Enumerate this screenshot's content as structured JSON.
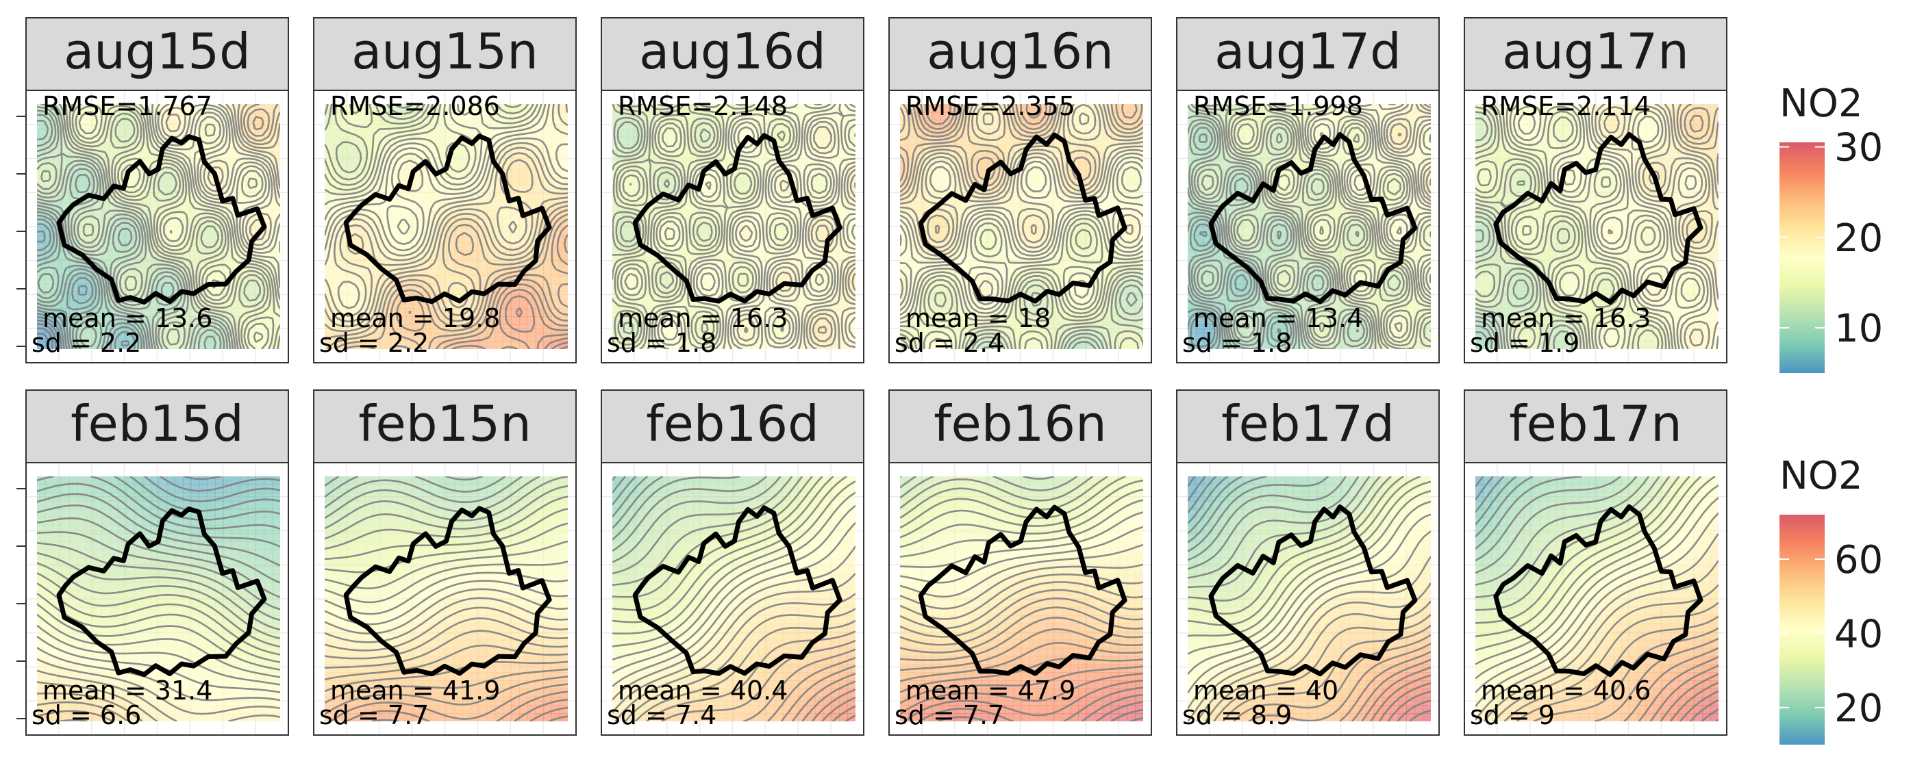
{
  "chart_data": {
    "type": "heatmap",
    "description_free": true,
    "rows": [
      {
        "legend": {
          "title": "NO2",
          "ticks": [
            10,
            20,
            30
          ],
          "range": [
            5,
            30.5
          ]
        },
        "panels": [
          {
            "label": "aug15d",
            "rmse": "RMSE=1.767",
            "mean": "mean = 13.6",
            "sd": "sd = 2.2",
            "field": {
              "base": 13.6,
              "gx": 0.09,
              "gy": -0.07,
              "freq": 0.18,
              "amp": 1.2
            },
            "contour_step": 0.55
          },
          {
            "label": "aug15n",
            "rmse": "RMSE=2.086",
            "mean": "mean = 19.8",
            "sd": "sd = 2.2",
            "field": {
              "base": 19.8,
              "gx": 0.05,
              "gy": 0.09,
              "freq": 0.14,
              "amp": 1.0
            },
            "contour_step": 0.55
          },
          {
            "label": "aug16d",
            "rmse": "RMSE=2.148",
            "mean": "mean = 16.3",
            "sd": "sd = 1.8",
            "field": {
              "base": 16.3,
              "gx": 0.05,
              "gy": 0.02,
              "freq": 0.2,
              "amp": 1.0
            },
            "contour_step": 0.5
          },
          {
            "label": "aug16n",
            "rmse": "RMSE=2.355",
            "mean": "mean = 18",
            "sd": "sd = 2.4",
            "field": {
              "base": 18.0,
              "gx": -0.03,
              "gy": -0.09,
              "freq": 0.16,
              "amp": 1.3
            },
            "contour_step": 0.6
          },
          {
            "label": "aug17d",
            "rmse": "RMSE=1.998",
            "mean": "mean = 13.4",
            "sd": "sd = 1.8",
            "field": {
              "base": 13.4,
              "gx": 0.08,
              "gy": -0.05,
              "freq": 0.2,
              "amp": 1.1
            },
            "contour_step": 0.5
          },
          {
            "label": "aug17n",
            "rmse": "RMSE=2.114",
            "mean": "mean = 16.3",
            "sd": "sd = 1.9",
            "field": {
              "base": 16.3,
              "gx": 0.07,
              "gy": -0.04,
              "freq": 0.18,
              "amp": 0.9
            },
            "contour_step": 0.5
          }
        ]
      },
      {
        "legend": {
          "title": "NO2",
          "ticks": [
            20,
            40,
            60
          ],
          "range": [
            10,
            72
          ]
        },
        "panels": [
          {
            "label": "feb15d",
            "rmse": "",
            "mean": "mean = 31.4",
            "sd": "sd = 6.6",
            "field": {
              "base": 31.4,
              "gx": -0.08,
              "gy": 0.32,
              "freq": 0.08,
              "amp": 1.0
            },
            "contour_step": 1.4
          },
          {
            "label": "feb15n",
            "rmse": "",
            "mean": "mean = 41.9",
            "sd": "sd = 7.7",
            "field": {
              "base": 41.9,
              "gx": 0.05,
              "gy": 0.36,
              "freq": 0.08,
              "amp": 1.2
            },
            "contour_step": 1.6
          },
          {
            "label": "feb16d",
            "rmse": "",
            "mean": "mean = 40.4",
            "sd": "sd = 7.4",
            "field": {
              "base": 40.4,
              "gx": 0.18,
              "gy": 0.3,
              "freq": 0.08,
              "amp": 1.2
            },
            "contour_step": 1.5
          },
          {
            "label": "feb16n",
            "rmse": "",
            "mean": "mean = 47.9",
            "sd": "sd = 7.7",
            "field": {
              "base": 47.9,
              "gx": 0.06,
              "gy": 0.38,
              "freq": 0.08,
              "amp": 1.3
            },
            "contour_step": 1.6
          },
          {
            "label": "feb17d",
            "rmse": "",
            "mean": "mean = 40",
            "sd": "sd = 8.9",
            "field": {
              "base": 40.0,
              "gx": 0.22,
              "gy": 0.36,
              "freq": 0.09,
              "amp": 1.5
            },
            "contour_step": 1.8
          },
          {
            "label": "feb17n",
            "rmse": "",
            "mean": "mean = 40.6",
            "sd": "sd = 9",
            "field": {
              "base": 40.6,
              "gx": 0.24,
              "gy": 0.34,
              "freq": 0.08,
              "amp": 1.3
            },
            "contour_step": 1.8
          }
        ]
      }
    ],
    "colormap": [
      "#2b83ba",
      "#66c2a5",
      "#abdda4",
      "#e6f598",
      "#ffffbf",
      "#fee08b",
      "#fdae61",
      "#f46d43",
      "#d53e4f"
    ],
    "strip_color": "#d9d9d9",
    "boundary_color": "#000000",
    "contour_color": "#808080"
  }
}
